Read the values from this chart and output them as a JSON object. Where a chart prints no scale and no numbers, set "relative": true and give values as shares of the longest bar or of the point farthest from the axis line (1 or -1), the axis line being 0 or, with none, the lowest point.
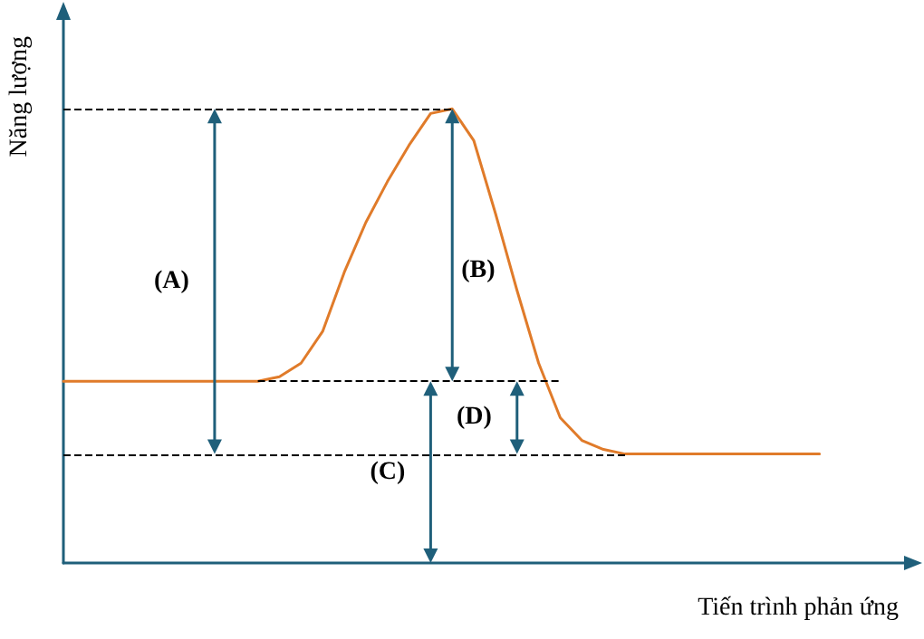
{
  "chart_data": {
    "type": "line",
    "relative": true,
    "ylabel": "Năng lượng",
    "xlabel": "Tiến trình phản ứng",
    "categories": [
      null,
      null,
      null,
      null,
      null,
      null,
      null,
      null,
      null,
      null,
      null,
      null,
      null,
      null,
      null,
      null,
      null,
      null,
      null,
      null,
      null,
      null,
      null,
      null,
      null,
      null,
      null,
      null,
      null,
      null,
      null,
      null,
      null,
      null,
      null,
      null
    ],
    "series": [
      {
        "color": "#e07b2a",
        "values": [
          0.4,
          0.4,
          0.4,
          0.4,
          0.4,
          0.4,
          0.4,
          0.4,
          0.4,
          0.4,
          0.41,
          0.44,
          0.51,
          0.64,
          0.75,
          0.84,
          0.92,
          0.99,
          1,
          0.93,
          0.77,
          0.6,
          0.44,
          0.32,
          0.27,
          0.25,
          0.24,
          0.24,
          0.24,
          0.24,
          0.24,
          0.24,
          0.24,
          0.24,
          0.24,
          0.24
        ]
      }
    ],
    "ref_lines": [
      {
        "axis": "y",
        "value": 1,
        "color": "#000000",
        "line_style": "dashed"
      },
      {
        "axis": "y",
        "value": 0.4,
        "color": "#000000",
        "line_style": "dashed"
      },
      {
        "axis": "y",
        "value": 0.24,
        "color": "#000000",
        "line_style": "dashed"
      }
    ],
    "annotations": [
      "(A)",
      "(B)",
      "(C)",
      "(D)"
    ],
    "grid": false,
    "marker": "none",
    "line_style": "solid"
  }
}
